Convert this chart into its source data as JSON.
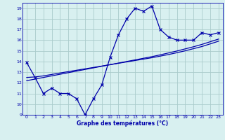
{
  "x": [
    0,
    1,
    2,
    3,
    4,
    5,
    6,
    7,
    8,
    9,
    10,
    11,
    12,
    13,
    14,
    15,
    16,
    17,
    18,
    19,
    20,
    21,
    22,
    23
  ],
  "y_main": [
    13.9,
    12.5,
    11.0,
    11.5,
    11.0,
    11.0,
    10.5,
    9.0,
    10.5,
    11.8,
    14.4,
    16.5,
    18.0,
    19.0,
    18.7,
    19.2,
    17.0,
    16.3,
    16.0,
    16.0,
    16.0,
    16.7,
    16.5,
    16.7
  ],
  "y_trend1": [
    12.5,
    12.55,
    12.65,
    12.78,
    12.92,
    13.05,
    13.18,
    13.31,
    13.44,
    13.57,
    13.7,
    13.83,
    13.96,
    14.09,
    14.22,
    14.35,
    14.5,
    14.65,
    14.82,
    15.0,
    15.2,
    15.4,
    15.65,
    15.9
  ],
  "y_trend2": [
    12.2,
    12.35,
    12.5,
    12.65,
    12.8,
    12.95,
    13.1,
    13.25,
    13.4,
    13.55,
    13.7,
    13.85,
    14.0,
    14.15,
    14.3,
    14.45,
    14.62,
    14.8,
    14.98,
    15.18,
    15.38,
    15.6,
    15.85,
    16.1
  ],
  "line_color": "#0000aa",
  "bg_color": "#d8f0f0",
  "grid_color": "#aacccc",
  "xlabel": "Graphe des températures (°C)",
  "yticks": [
    9,
    10,
    11,
    12,
    13,
    14,
    15,
    16,
    17,
    18,
    19
  ],
  "xlim": [
    -0.5,
    23.5
  ],
  "ylim": [
    9,
    19.5
  ]
}
